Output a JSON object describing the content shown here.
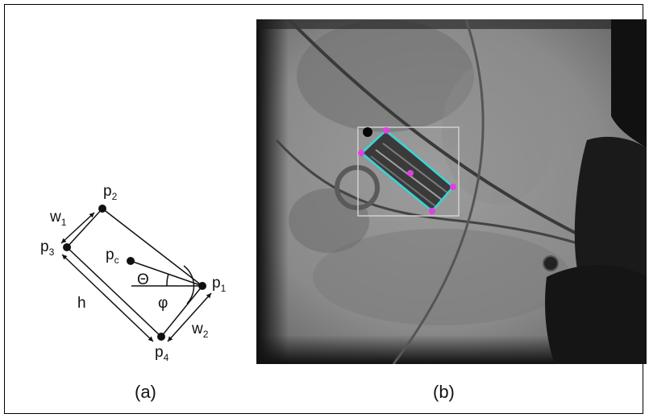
{
  "panel_a": {
    "labels": {
      "w1": "w",
      "w1_sub": "1",
      "p2": "p",
      "p2_sub": "2",
      "p3": "p",
      "p3_sub": "3",
      "pc": "p",
      "pc_sub": "c",
      "theta": "Θ",
      "phi": "φ",
      "p1": "p",
      "p1_sub": "1",
      "h": "h",
      "w2": "w",
      "w2_sub": "2",
      "p4": "p",
      "p4_sub": "4"
    },
    "caption": "(a)"
  },
  "panel_b": {
    "caption": "(b)",
    "colors": {
      "box": "#35d6d6",
      "points": "#e040e0",
      "roi": "#cccccc"
    }
  }
}
